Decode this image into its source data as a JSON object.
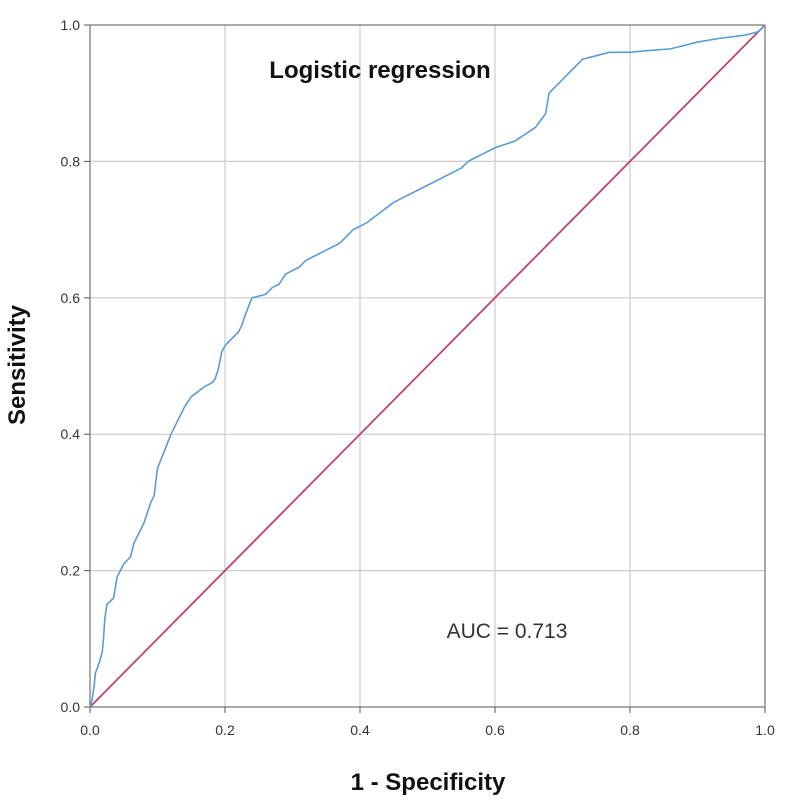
{
  "chart_data": {
    "type": "line",
    "title": "Logistic regression",
    "xlabel": "1 - Specificity",
    "ylabel": "Sensitivity",
    "xlim": [
      0.0,
      1.0
    ],
    "ylim": [
      0.0,
      1.0
    ],
    "grid": true,
    "x_ticks": [
      "0.0",
      "0.2",
      "0.4",
      "0.6",
      "0.8",
      "1.0"
    ],
    "y_ticks": [
      "0.0",
      "0.2",
      "0.4",
      "0.6",
      "0.8",
      "1.0"
    ],
    "annotation": "AUC = 0.713",
    "colors": {
      "roc": "#5b9bd5",
      "reference": "#c0436b",
      "grid": "#cccccc",
      "axis": "#555555"
    },
    "series": [
      {
        "values": [
          [
            0.0,
            0.0
          ],
          [
            0.003,
            0.01
          ],
          [
            0.006,
            0.03
          ],
          [
            0.008,
            0.05
          ],
          [
            0.012,
            0.06
          ],
          [
            0.015,
            0.07
          ],
          [
            0.018,
            0.08
          ],
          [
            0.02,
            0.1
          ],
          [
            0.022,
            0.13
          ],
          [
            0.025,
            0.15
          ],
          [
            0.035,
            0.16
          ],
          [
            0.04,
            0.19
          ],
          [
            0.05,
            0.21
          ],
          [
            0.06,
            0.22
          ],
          [
            0.065,
            0.24
          ],
          [
            0.07,
            0.25
          ],
          [
            0.08,
            0.27
          ],
          [
            0.09,
            0.3
          ],
          [
            0.095,
            0.31
          ],
          [
            0.1,
            0.35
          ],
          [
            0.12,
            0.4
          ],
          [
            0.14,
            0.44
          ],
          [
            0.15,
            0.455
          ],
          [
            0.17,
            0.47
          ],
          [
            0.18,
            0.475
          ],
          [
            0.185,
            0.48
          ],
          [
            0.19,
            0.495
          ],
          [
            0.195,
            0.52
          ],
          [
            0.2,
            0.53
          ],
          [
            0.21,
            0.54
          ],
          [
            0.22,
            0.55
          ],
          [
            0.225,
            0.56
          ],
          [
            0.23,
            0.575
          ],
          [
            0.24,
            0.6
          ],
          [
            0.26,
            0.605
          ],
          [
            0.27,
            0.615
          ],
          [
            0.28,
            0.62
          ],
          [
            0.29,
            0.635
          ],
          [
            0.31,
            0.645
          ],
          [
            0.32,
            0.655
          ],
          [
            0.33,
            0.66
          ],
          [
            0.35,
            0.67
          ],
          [
            0.37,
            0.68
          ],
          [
            0.38,
            0.69
          ],
          [
            0.39,
            0.7
          ],
          [
            0.41,
            0.71
          ],
          [
            0.45,
            0.74
          ],
          [
            0.5,
            0.765
          ],
          [
            0.55,
            0.79
          ],
          [
            0.56,
            0.8
          ],
          [
            0.58,
            0.81
          ],
          [
            0.6,
            0.82
          ],
          [
            0.63,
            0.83
          ],
          [
            0.66,
            0.85
          ],
          [
            0.675,
            0.87
          ],
          [
            0.68,
            0.9
          ],
          [
            0.7,
            0.92
          ],
          [
            0.71,
            0.93
          ],
          [
            0.73,
            0.95
          ],
          [
            0.75,
            0.955
          ],
          [
            0.77,
            0.96
          ],
          [
            0.8,
            0.96
          ],
          [
            0.82,
            0.962
          ],
          [
            0.86,
            0.965
          ],
          [
            0.9,
            0.975
          ],
          [
            0.93,
            0.98
          ],
          [
            0.97,
            0.985
          ],
          [
            0.99,
            0.99
          ],
          [
            1.0,
            1.0
          ]
        ]
      },
      {
        "values": [
          [
            0.0,
            0.0
          ],
          [
            1.0,
            1.0
          ]
        ]
      }
    ]
  }
}
